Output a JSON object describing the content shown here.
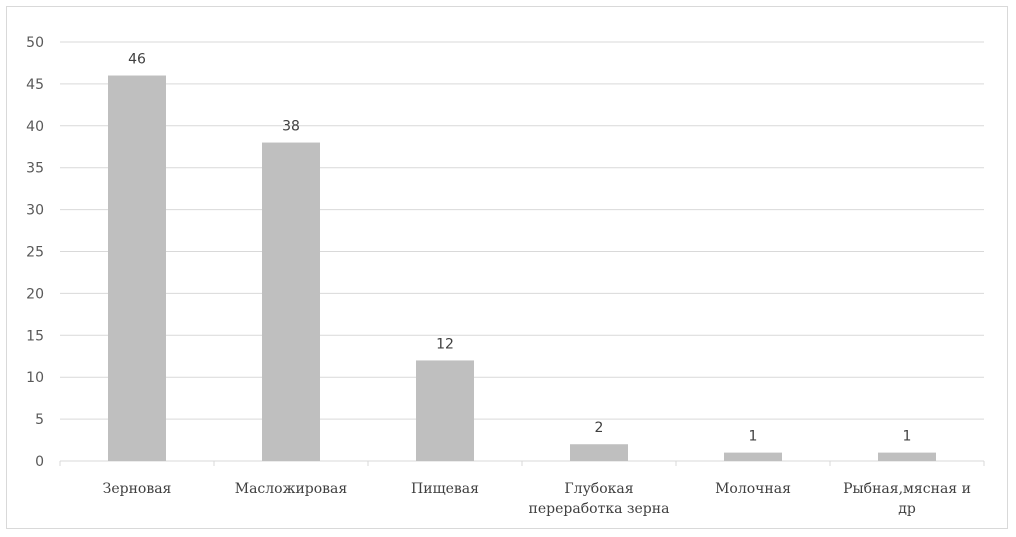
{
  "chart_data": {
    "type": "bar",
    "title": "",
    "xlabel": "",
    "ylabel": "",
    "ylim": [
      0,
      50
    ],
    "ytick_step": 5,
    "grid": true,
    "legend": "none",
    "bar_color": "#bfbfbf",
    "categories": [
      [
        "Зерновая"
      ],
      [
        "Масложировая"
      ],
      [
        "Пищевая"
      ],
      [
        "Глубокая",
        "переработка зерна"
      ],
      [
        "Молочная"
      ],
      [
        "Рыбная,мясная и",
        "др"
      ]
    ],
    "values": [
      46,
      38,
      12,
      2,
      1,
      1
    ]
  }
}
